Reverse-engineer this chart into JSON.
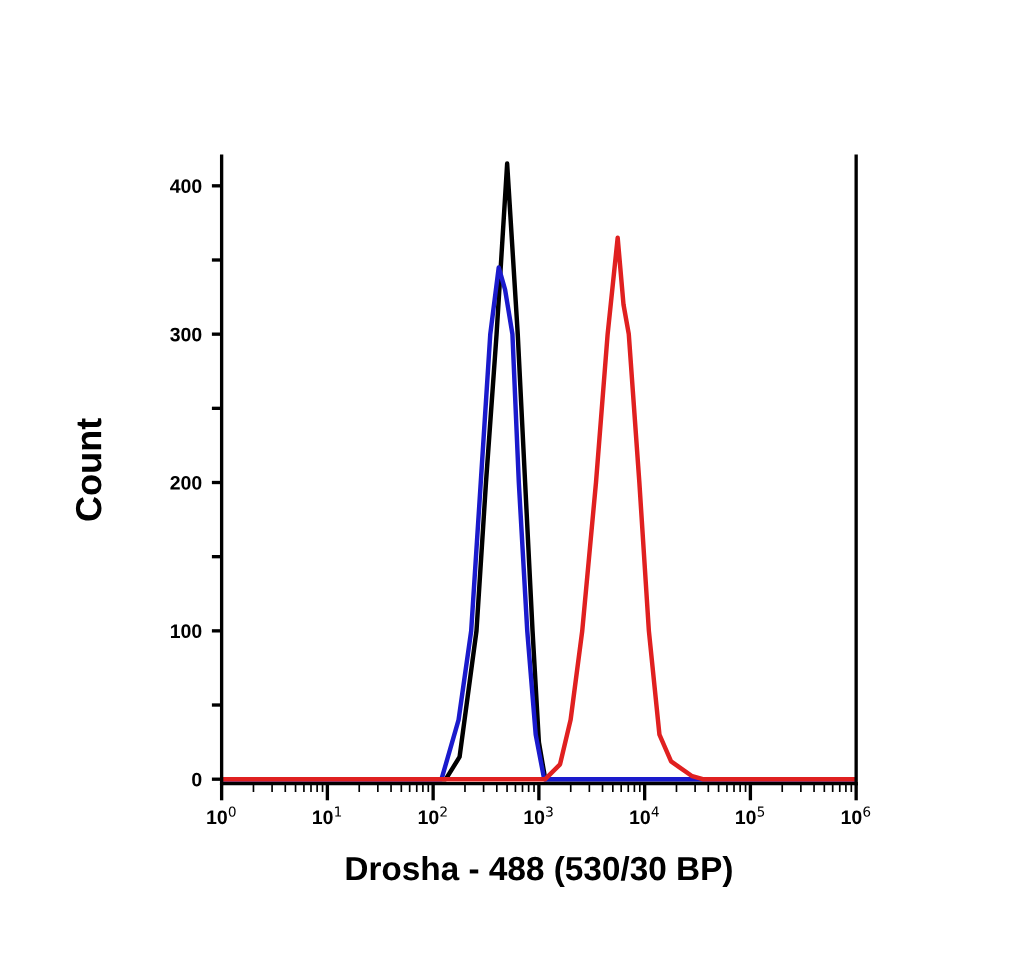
{
  "chart_data": {
    "type": "line",
    "xlabel": "Drosha - 488 (530/30 BP)",
    "ylabel": "Count",
    "log": "x",
    "xlim": [
      1,
      1000000
    ],
    "ylim": [
      -3,
      420
    ],
    "xticks": [
      {
        "value": 1,
        "label": "10$^{0}$"
      },
      {
        "value": 10,
        "label": "10$^{1}$"
      },
      {
        "value": 100,
        "label": "10$^{2}$"
      },
      {
        "value": 1000,
        "label": "10$^{3}$"
      },
      {
        "value": 10000,
        "label": "10$^{4}$"
      },
      {
        "value": 100000,
        "label": "10$^{5}$"
      },
      {
        "value": 1000000,
        "label": "10$^{6}$"
      }
    ],
    "yticks": [
      0,
      {
        "value": 50,
        "label": null
      },
      100,
      {
        "value": 150,
        "label": null
      },
      200,
      {
        "value": 250,
        "label": null
      },
      300,
      {
        "value": 350,
        "label": null
      },
      400
    ],
    "grid": false,
    "legend": false,
    "marker": "none",
    "line_style": "solid",
    "series": [
      {
        "color": "#000000",
        "x": [
          1,
          131.8,
          177.8,
          257,
          316,
          398,
          501,
          631,
          741,
          871,
          1000,
          1148,
          1000000
        ],
        "values": [
          0,
          0,
          15,
          100,
          200,
          300,
          415,
          300,
          200,
          100,
          25,
          0,
          0
        ]
      },
      {
        "color": "#1a1acc",
        "x": [
          1,
          120,
          174,
          229,
          282,
          347,
          417,
          479,
          562,
          646,
          776,
          933,
          1122,
          1000000
        ],
        "values": [
          0,
          0,
          40,
          100,
          200,
          300,
          345,
          330,
          300,
          200,
          100,
          30,
          0,
          0
        ]
      },
      {
        "color": "#e02020",
        "x": [
          1,
          1148,
          1585,
          1995,
          2570,
          3467,
          4467,
          5559,
          6310,
          7079,
          8913,
          10965,
          13804,
          17783,
          21380,
          28184,
          35481,
          1000000
        ],
        "values": [
          0,
          0,
          10,
          40,
          100,
          200,
          300,
          365,
          320,
          300,
          200,
          100,
          30,
          12,
          8,
          2,
          0,
          0
        ]
      }
    ]
  }
}
